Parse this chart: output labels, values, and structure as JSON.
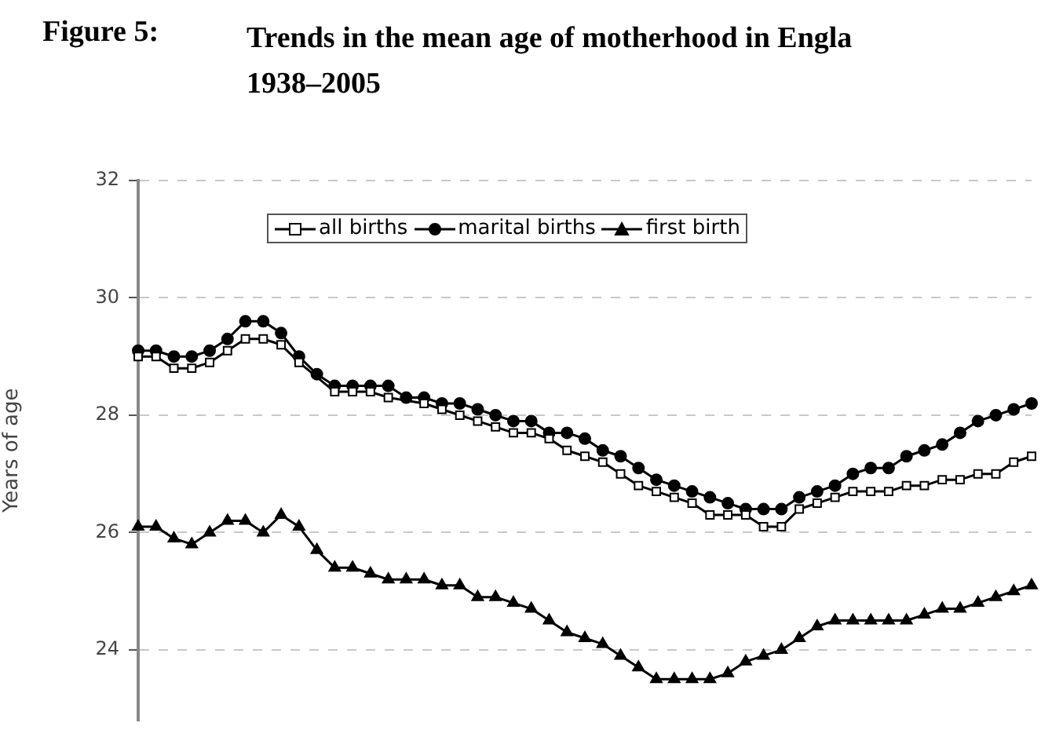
{
  "chart_data": {
    "type": "line",
    "title": "Figure 5:",
    "subtitle": "Trends in the mean age of motherhood in Engla\n1938–2005",
    "ylabel": "Years of age",
    "categories": [
      null,
      null,
      null,
      null,
      null,
      null,
      null,
      null,
      null,
      null,
      null,
      null,
      null,
      null,
      null,
      null,
      null,
      null,
      null,
      null,
      null,
      null,
      null,
      null,
      null,
      null,
      null,
      null,
      null,
      null,
      null,
      null,
      null,
      null,
      null,
      null,
      null,
      null,
      null,
      null,
      null,
      null,
      null,
      null,
      null,
      null,
      null,
      null,
      null,
      null,
      null
    ],
    "series": [
      {
        "name": "all births",
        "color": "#000000",
        "marker": "square",
        "values": [
          29.0,
          29.0,
          28.8,
          28.8,
          28.9,
          29.1,
          29.3,
          29.3,
          29.2,
          28.9,
          null,
          28.4,
          28.4,
          28.4,
          28.3,
          null,
          28.2,
          28.1,
          28.0,
          27.9,
          27.8,
          27.7,
          27.7,
          27.6,
          27.4,
          27.3,
          27.2,
          27.0,
          26.8,
          26.7,
          26.6,
          26.5,
          26.3,
          26.3,
          26.3,
          26.1,
          26.1,
          26.4,
          26.5,
          26.6,
          26.7,
          26.7,
          26.7,
          26.8,
          26.8,
          26.9,
          26.9,
          27.0,
          27.0,
          27.2,
          27.3
        ]
      },
      {
        "name": "marital births",
        "color": "#000000",
        "marker": "circle",
        "values": [
          29.1,
          29.1,
          29.0,
          29.0,
          29.1,
          29.3,
          29.6,
          29.6,
          29.4,
          29.0,
          28.7,
          28.5,
          28.5,
          28.5,
          28.5,
          28.3,
          28.3,
          28.2,
          28.2,
          28.1,
          28.0,
          27.9,
          27.9,
          27.7,
          27.7,
          27.6,
          27.4,
          27.3,
          27.1,
          26.9,
          26.8,
          26.7,
          26.6,
          26.5,
          26.4,
          26.4,
          26.4,
          26.6,
          26.7,
          26.8,
          27.0,
          27.1,
          27.1,
          27.3,
          27.4,
          27.5,
          27.7,
          27.9,
          28.0,
          28.1,
          28.2
        ]
      },
      {
        "name": "first birth",
        "color": "#000000",
        "marker": "triangle",
        "values": [
          26.1,
          26.1,
          25.9,
          25.8,
          26.0,
          26.2,
          26.2,
          26.0,
          26.3,
          26.1,
          25.7,
          25.4,
          25.4,
          25.3,
          25.2,
          25.2,
          25.2,
          25.1,
          25.1,
          24.9,
          24.9,
          24.8,
          24.7,
          24.5,
          24.3,
          24.2,
          24.1,
          23.9,
          23.7,
          23.5,
          23.5,
          23.5,
          23.5,
          23.6,
          23.8,
          23.9,
          24.0,
          24.2,
          24.4,
          24.5,
          24.5,
          24.5,
          24.5,
          24.5,
          24.6,
          24.7,
          24.7,
          24.8,
          24.9,
          25.0,
          25.1
        ]
      }
    ],
    "ylim": [
      22.8,
      32
    ],
    "yticks": [
      24,
      26,
      28,
      30,
      32
    ],
    "grid": "y",
    "legend": "top",
    "line_style": "solid",
    "tick_labels": "y"
  }
}
